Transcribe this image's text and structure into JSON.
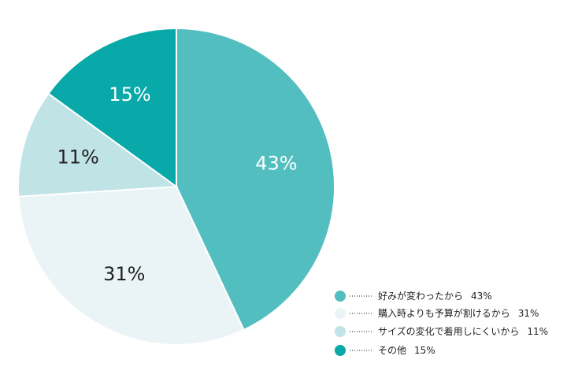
{
  "chart_data": {
    "type": "pie",
    "categories": [
      "好みが変わったから",
      "購入時よりも予算が割けるから",
      "サイズの変化で着用しにくいから",
      "その他"
    ],
    "values": [
      43,
      31,
      11,
      15
    ],
    "value_labels": [
      "43%",
      "31%",
      "11%",
      "15%"
    ],
    "colors": [
      "#52bec0",
      "#eaf4f6",
      "#c0e3e5",
      "#09a9a9"
    ]
  }
}
